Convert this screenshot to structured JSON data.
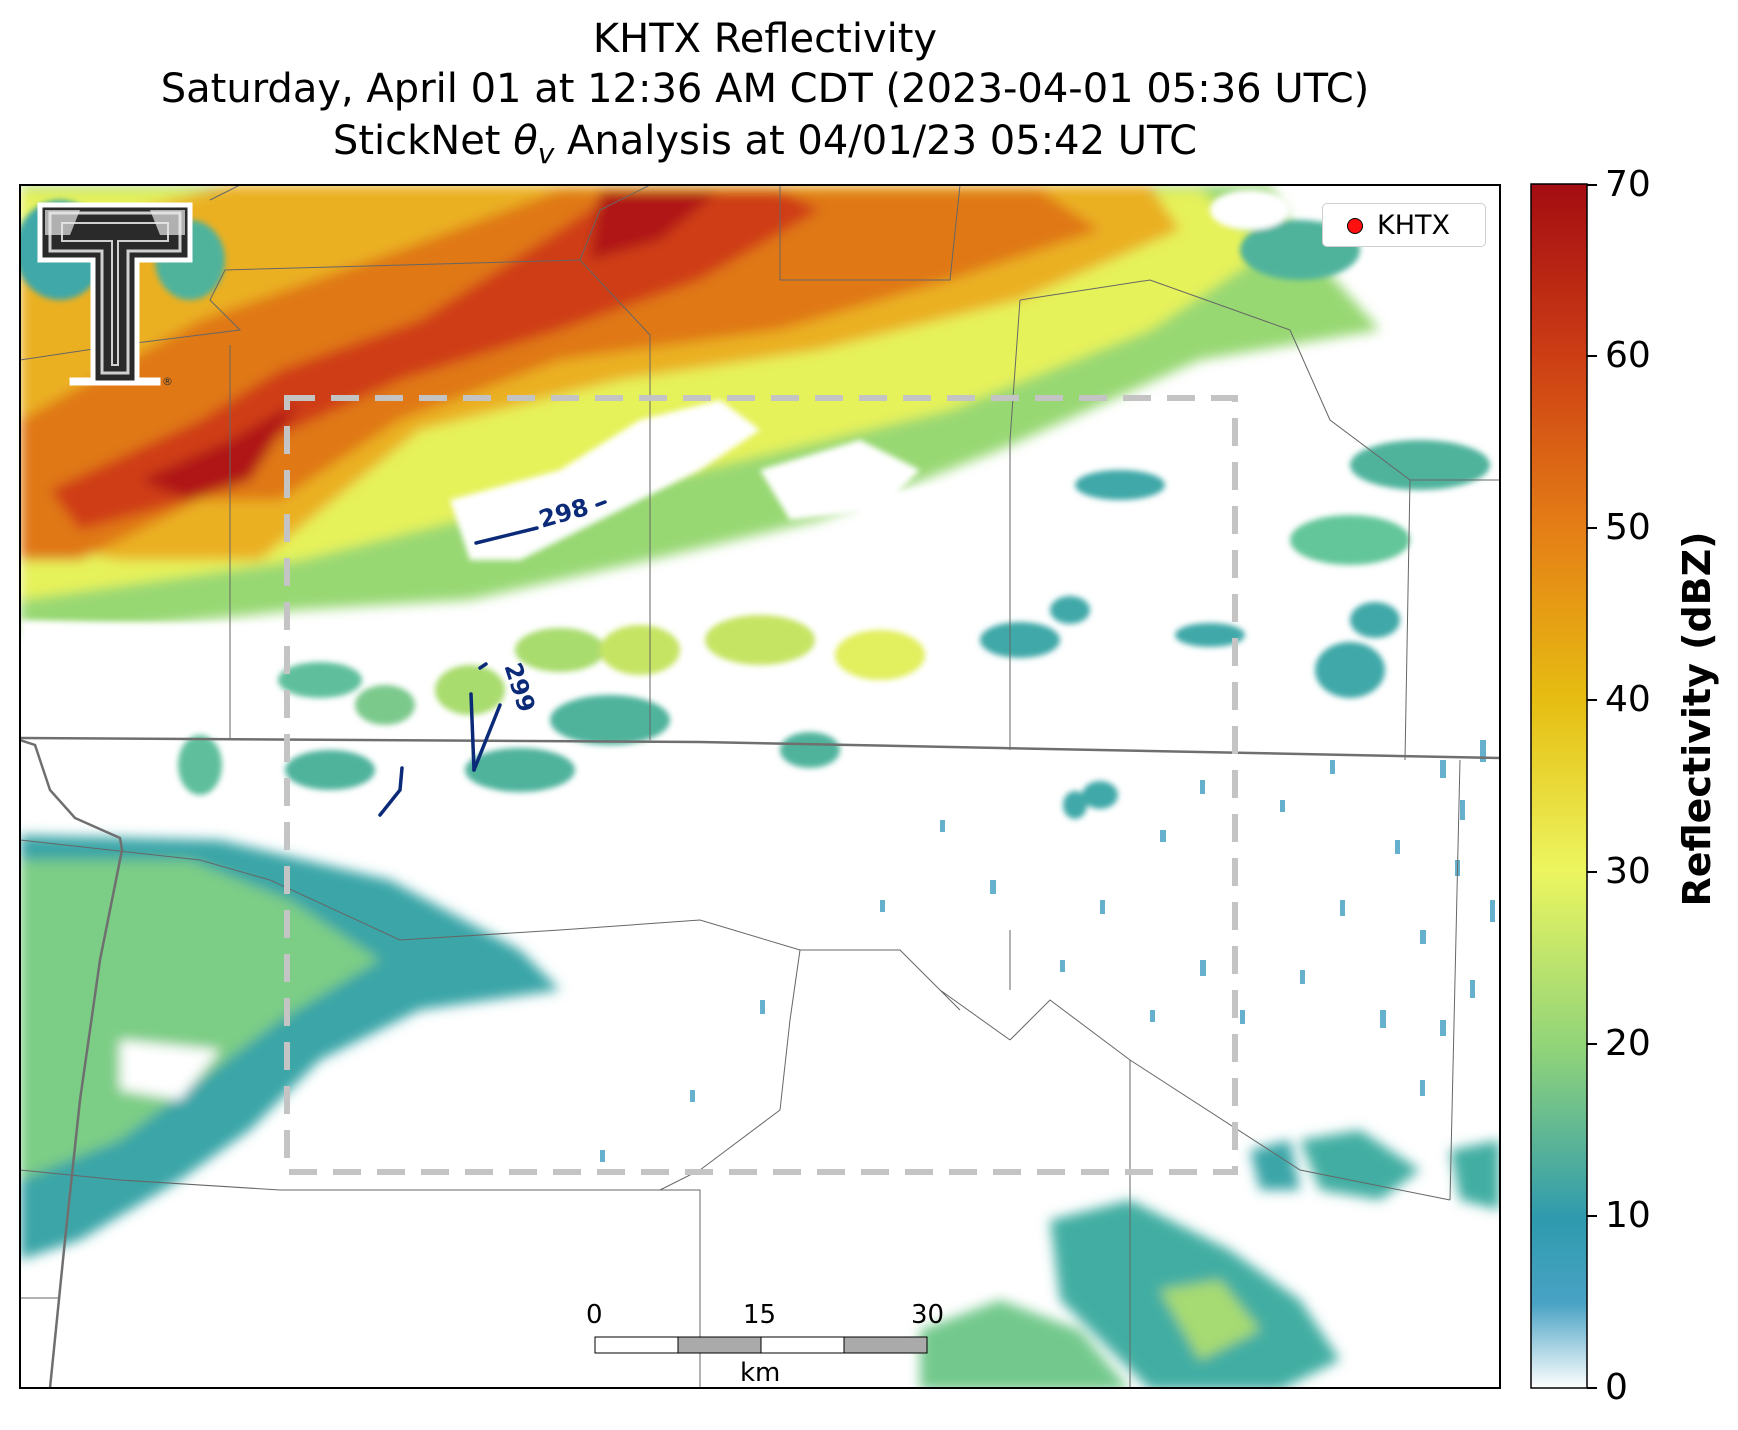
{
  "title": {
    "line1": "KHTX Reflectivity",
    "line2": "Saturday, April 01 at 12:36 AM CDT (2023-04-01 05:36 UTC)",
    "line3_prefix": "StickNet ",
    "line3_theta": "θ",
    "line3_sub": "v",
    "line3_suffix": " Analysis at 04/01/23 05:42 UTC"
  },
  "colorbar": {
    "label": "Reflectivity (dBZ)",
    "ticks": [
      "0",
      "10",
      "20",
      "30",
      "40",
      "50",
      "60",
      "70"
    ],
    "min": 0,
    "max": 70,
    "stops": [
      {
        "value": 0,
        "color": "#ffffff"
      },
      {
        "value": 5,
        "color": "#4aa3c5"
      },
      {
        "value": 10,
        "color": "#2e9aae"
      },
      {
        "value": 20,
        "color": "#8fd37a"
      },
      {
        "value": 30,
        "color": "#ecf55f"
      },
      {
        "value": 40,
        "color": "#e6be12"
      },
      {
        "value": 50,
        "color": "#e58016"
      },
      {
        "value": 60,
        "color": "#cc3c14"
      },
      {
        "value": 70,
        "color": "#a30d12"
      }
    ]
  },
  "legend": {
    "label": "KHTX",
    "marker_color": "#ff1010"
  },
  "contours": [
    {
      "label": "298",
      "color": "#0b2a78"
    },
    {
      "label": "299",
      "color": "#0b2a78"
    }
  ],
  "scalebar": {
    "ticks": [
      "0",
      "15",
      "30"
    ],
    "unit": "km"
  },
  "logo": {
    "name": "texas-tech-double-t-logo",
    "mark": "®"
  },
  "colors": {
    "analysis_box": "#c4c4c4",
    "boundaries": "#555555",
    "contour": "#0b2a78"
  }
}
